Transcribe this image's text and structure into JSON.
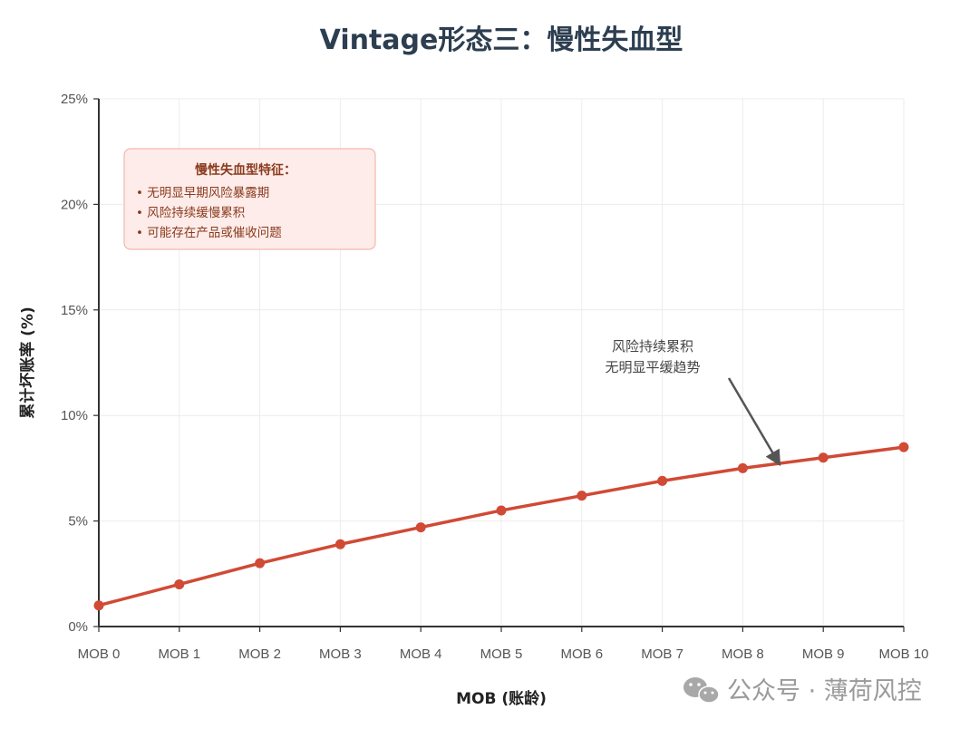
{
  "chart_data": {
    "type": "line",
    "title": "Vintage形态三：慢性失血型",
    "xlabel": "MOB (账龄)",
    "ylabel": "累计坏账率 (%)",
    "categories": [
      "MOB 0",
      "MOB 1",
      "MOB 2",
      "MOB 3",
      "MOB 4",
      "MOB 5",
      "MOB 6",
      "MOB 7",
      "MOB 8",
      "MOB 9",
      "MOB 10"
    ],
    "series": [
      {
        "values": [
          1.0,
          2.0,
          3.0,
          3.9,
          4.7,
          5.5,
          6.2,
          6.9,
          7.5,
          8.0,
          8.5
        ]
      }
    ],
    "ylim": [
      0,
      25
    ],
    "yticks": [
      0,
      5,
      10,
      15,
      20,
      25
    ],
    "ytick_labels": [
      "0%",
      "5%",
      "10%",
      "15%",
      "20%",
      "25%"
    ],
    "grid": true,
    "legend_placement": "top-left",
    "colors": {
      "line": "#d04a35",
      "legend_bg": "#fdecea",
      "legend_border": "#f4b8ac",
      "legend_text": "#8a3a1c",
      "title": "#2c3e50",
      "arrow": "#555555"
    },
    "info_box": {
      "title": "慢性失血型特征：",
      "items": [
        "• 无明显早期风险暴露期",
        "• 风险持续缓慢累积",
        "• 可能存在产品或催收问题"
      ]
    },
    "annotation": {
      "lines": [
        "风险持续累积",
        "无明显平缓趋势"
      ],
      "target_index": 8.45
    }
  },
  "watermark": {
    "icon": "wechat-icon",
    "text": "公众号 · 薄荷风控"
  }
}
